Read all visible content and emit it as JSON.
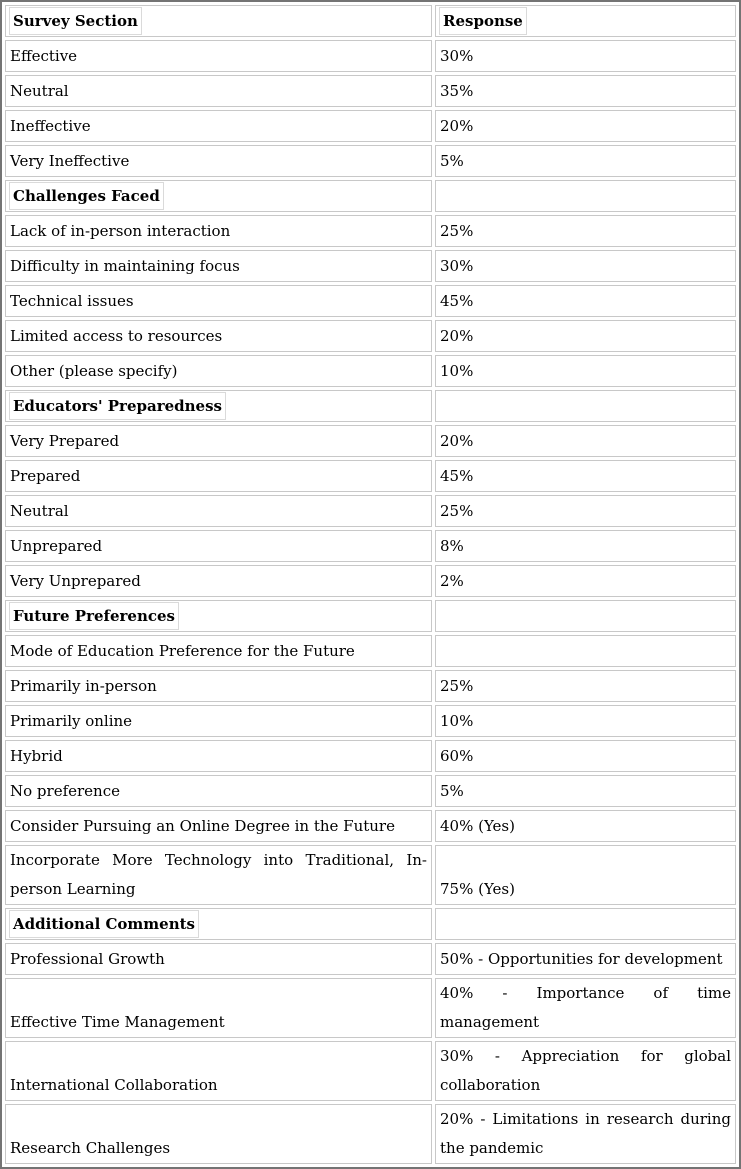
{
  "colors": {
    "frame_border": "#747474",
    "cell_border": "#c8c8c8",
    "tag_box_border": "#dadada",
    "text": "#000000",
    "background": "#ffffff"
  },
  "table": {
    "header": {
      "left": "Survey Section",
      "right": "Response"
    },
    "rows": [
      {
        "type": "item",
        "label": "Effective",
        "value": "30%"
      },
      {
        "type": "item",
        "label": "Neutral",
        "value": "35%"
      },
      {
        "type": "item",
        "label": "Ineffective",
        "value": "20%"
      },
      {
        "type": "item",
        "label": "Very Ineffective",
        "value": "5%"
      },
      {
        "type": "section",
        "label": "Challenges Faced",
        "value": ""
      },
      {
        "type": "item",
        "label": "Lack of in-person interaction",
        "value": "25%"
      },
      {
        "type": "item",
        "label": "Difficulty in maintaining focus",
        "value": "30%"
      },
      {
        "type": "item",
        "label": "Technical issues",
        "value": "45%"
      },
      {
        "type": "item",
        "label": "Limited access to resources",
        "value": "20%"
      },
      {
        "type": "item",
        "label": "Other (please specify)",
        "value": "10%"
      },
      {
        "type": "section",
        "label": "Educators' Preparedness",
        "value": ""
      },
      {
        "type": "item",
        "label": "Very Prepared",
        "value": "20%"
      },
      {
        "type": "item",
        "label": "Prepared",
        "value": "45%"
      },
      {
        "type": "item",
        "label": "Neutral",
        "value": "25%"
      },
      {
        "type": "item",
        "label": "Unprepared",
        "value": "8%"
      },
      {
        "type": "item",
        "label": "Very Unprepared",
        "value": "2%"
      },
      {
        "type": "section",
        "label": "Future Preferences",
        "value": ""
      },
      {
        "type": "item",
        "label": "Mode of Education Preference for the Future",
        "value": ""
      },
      {
        "type": "item",
        "label": "Primarily in-person",
        "value": "25%"
      },
      {
        "type": "item",
        "label": "Primarily online",
        "value": "10%"
      },
      {
        "type": "item",
        "label": "Hybrid",
        "value": "60%"
      },
      {
        "type": "item",
        "label": "No preference",
        "value": "5%"
      },
      {
        "type": "item",
        "label": "Consider Pursuing an Online Degree in the Future",
        "value": "40% (Yes)"
      },
      {
        "type": "item",
        "label": "Incorporate More Technology into Traditional, In-person Learning",
        "value": "75% (Yes)"
      },
      {
        "type": "section",
        "label": "Additional Comments",
        "value": ""
      },
      {
        "type": "item",
        "label": "Professional Growth",
        "value": "50% - Opportunities for development"
      },
      {
        "type": "item",
        "label": "Effective Time Management",
        "value": "40% - Importance of time management"
      },
      {
        "type": "item",
        "label": "International Collaboration",
        "value": "30% - Appreciation for global collaboration"
      },
      {
        "type": "item",
        "label": "Research Challenges",
        "value": "20% - Limitations in research during the pandemic"
      }
    ]
  }
}
